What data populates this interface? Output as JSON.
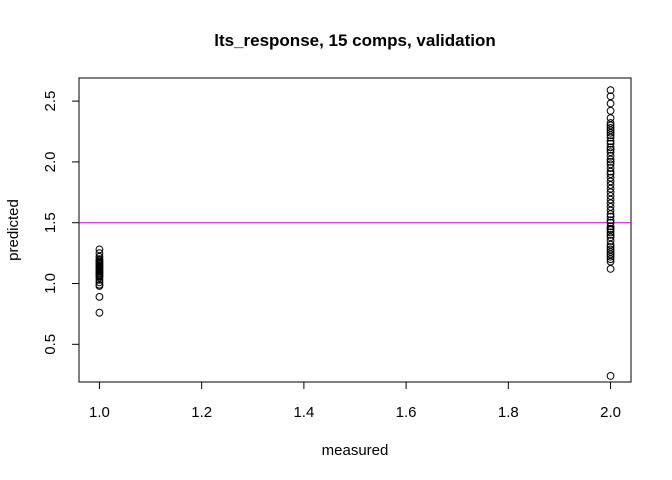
{
  "chart_data": {
    "type": "scatter",
    "title": "lts_response, 15 comps, validation",
    "xlabel": "measured",
    "ylabel": "predicted",
    "xlim": [
      0.96,
      2.04
    ],
    "ylim": [
      0.19,
      2.69
    ],
    "x_ticks": [
      1.0,
      1.2,
      1.4,
      1.6,
      1.8,
      2.0
    ],
    "x_tick_labels": [
      "1.0",
      "1.2",
      "1.4",
      "1.6",
      "1.8",
      "2.0"
    ],
    "y_ticks": [
      0.5,
      1.0,
      1.5,
      2.0,
      2.5
    ],
    "y_tick_labels": [
      "0.5",
      "1.0",
      "1.5",
      "2.0",
      "2.5"
    ],
    "reference_line": {
      "orientation": "horizontal",
      "y": 1.5,
      "color": "#cc00cc"
    },
    "point_style": {
      "shape": "open-circle",
      "color": "#000000"
    },
    "series": [
      {
        "name": "measured = 1",
        "x": [
          1,
          1,
          1,
          1,
          1,
          1,
          1,
          1,
          1,
          1,
          1,
          1,
          1,
          1,
          1,
          1,
          1,
          1,
          1,
          1,
          1,
          1,
          1,
          1,
          1
        ],
        "y": [
          1.28,
          1.25,
          1.22,
          1.2,
          1.19,
          1.18,
          1.17,
          1.16,
          1.15,
          1.14,
          1.13,
          1.12,
          1.11,
          1.1,
          1.09,
          1.08,
          1.07,
          1.06,
          1.05,
          1.03,
          1.01,
          0.99,
          0.98,
          0.89,
          0.76
        ]
      },
      {
        "name": "measured = 2",
        "x": [
          2,
          2,
          2,
          2,
          2,
          2,
          2,
          2,
          2,
          2,
          2,
          2,
          2,
          2,
          2,
          2,
          2,
          2,
          2,
          2,
          2,
          2,
          2,
          2,
          2,
          2,
          2,
          2,
          2,
          2,
          2,
          2,
          2,
          2,
          2,
          2,
          2,
          2,
          2,
          2,
          2,
          2,
          2,
          2,
          2,
          2,
          2,
          2,
          2,
          2,
          2,
          2,
          2,
          2,
          2
        ],
        "y": [
          2.59,
          2.54,
          2.48,
          2.42,
          2.36,
          2.32,
          2.3,
          2.28,
          2.26,
          2.24,
          2.22,
          2.2,
          2.17,
          2.15,
          2.12,
          2.1,
          2.08,
          2.05,
          2.02,
          2.0,
          1.98,
          1.95,
          1.92,
          1.9,
          1.87,
          1.84,
          1.81,
          1.78,
          1.75,
          1.72,
          1.69,
          1.66,
          1.63,
          1.6,
          1.57,
          1.55,
          1.52,
          1.5,
          1.47,
          1.44,
          1.42,
          1.4,
          1.38,
          1.35,
          1.32,
          1.3,
          1.28,
          1.26,
          1.24,
          1.22,
          1.2,
          1.18,
          1.12,
          1.45,
          0.24
        ]
      }
    ]
  }
}
